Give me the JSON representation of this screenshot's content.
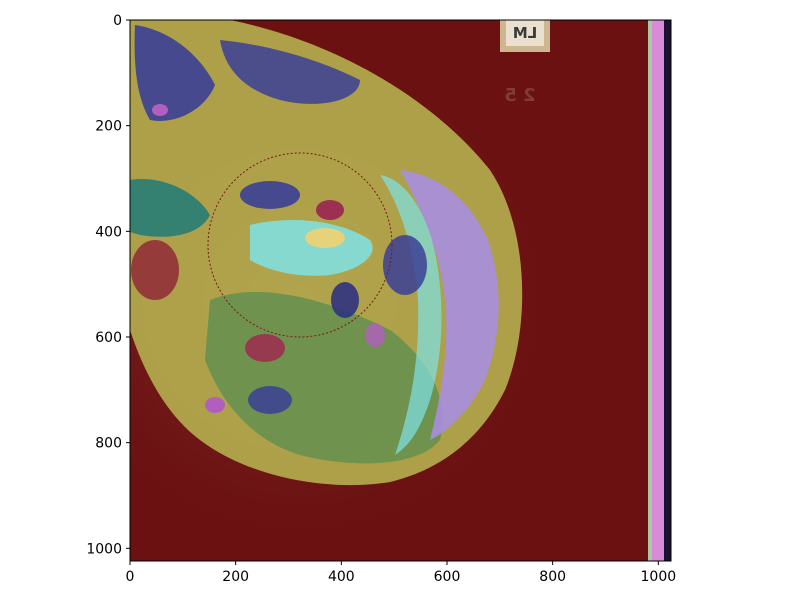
{
  "figure": {
    "x_axis": {
      "ticks": [
        "0",
        "200",
        "400",
        "600",
        "800",
        "1000"
      ],
      "range": [
        0,
        1024
      ]
    },
    "y_axis": {
      "ticks": [
        "0",
        "200",
        "400",
        "600",
        "800",
        "1000"
      ],
      "range": [
        0,
        1024
      ],
      "direction": "top-to-bottom"
    },
    "image": {
      "subject": "false-color segmented mammogram overlay",
      "background_color": "#6b1111",
      "marker_text": "LM",
      "marker_number": "2 5",
      "region_colors": [
        "#c8c35a",
        "#3b3f96",
        "#7ee3e6",
        "#a78ee0",
        "#5f8f4f",
        "#9b3050",
        "#b05fbf",
        "#1e7a78",
        "#e6d27a"
      ]
    }
  }
}
